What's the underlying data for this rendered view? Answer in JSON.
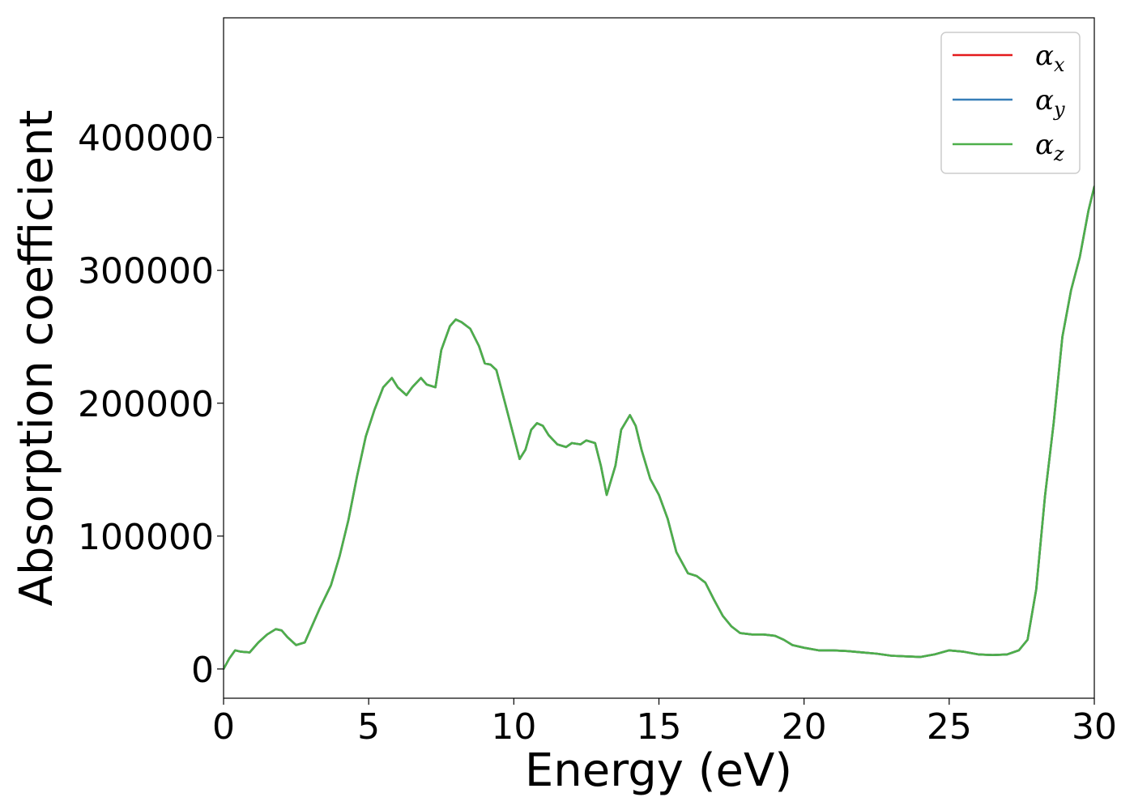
{
  "chart_data": {
    "type": "line",
    "title": "",
    "xlabel": "Energy (eV)",
    "ylabel": "Absorption coefficient",
    "xlim": [
      0,
      30
    ],
    "ylim": [
      -22000,
      490000
    ],
    "xticks": [
      0,
      5,
      10,
      15,
      20,
      25,
      30
    ],
    "yticks": [
      0,
      100000,
      200000,
      300000,
      400000
    ],
    "grid": false,
    "legend_position": "top-right",
    "legend": [
      {
        "symbol": "α",
        "subscript": "x",
        "color": "#e41a1c"
      },
      {
        "symbol": "α",
        "subscript": "y",
        "color": "#377eb8"
      },
      {
        "symbol": "α",
        "subscript": "z",
        "color": "#4daf4a"
      }
    ],
    "x": [
      0,
      0.2,
      0.4,
      0.6,
      0.9,
      1.2,
      1.5,
      1.8,
      2.0,
      2.2,
      2.5,
      2.8,
      3.0,
      3.3,
      3.7,
      4.0,
      4.3,
      4.6,
      4.9,
      5.2,
      5.5,
      5.8,
      6.0,
      6.3,
      6.5,
      6.8,
      7.0,
      7.3,
      7.5,
      7.8,
      8.0,
      8.2,
      8.5,
      8.8,
      9.0,
      9.2,
      9.4,
      9.7,
      10.0,
      10.2,
      10.4,
      10.6,
      10.8,
      11.0,
      11.2,
      11.5,
      11.8,
      12.0,
      12.3,
      12.5,
      12.8,
      13.0,
      13.2,
      13.5,
      13.7,
      14.0,
      14.2,
      14.4,
      14.7,
      15.0,
      15.3,
      15.6,
      16.0,
      16.3,
      16.6,
      16.9,
      17.2,
      17.5,
      17.8,
      18.2,
      18.6,
      19.0,
      19.3,
      19.6,
      20.0,
      20.5,
      21.0,
      21.5,
      22.0,
      22.5,
      23.0,
      23.5,
      24.0,
      24.5,
      25.0,
      25.5,
      26.0,
      26.5,
      27.0,
      27.4,
      27.7,
      28.0,
      28.3,
      28.6,
      28.9,
      29.2,
      29.5,
      29.8,
      30.0
    ],
    "series": [
      {
        "name": "α_x",
        "color": "#e41a1c",
        "values": [
          0,
          8000,
          14000,
          13000,
          12500,
          20000,
          26000,
          30000,
          29000,
          24000,
          18000,
          20000,
          30000,
          45000,
          63000,
          85000,
          112000,
          145000,
          175000,
          195000,
          212000,
          219000,
          212000,
          206000,
          212000,
          219000,
          214000,
          212000,
          240000,
          258000,
          263000,
          261000,
          256000,
          243000,
          230000,
          229000,
          225000,
          200000,
          175000,
          158000,
          165000,
          180000,
          185000,
          183000,
          176000,
          169000,
          167000,
          170000,
          169000,
          172000,
          170000,
          153000,
          131000,
          153000,
          180000,
          191000,
          183000,
          165000,
          143000,
          131000,
          113000,
          88000,
          72000,
          70000,
          65000,
          52000,
          40000,
          32000,
          27000,
          26000,
          26000,
          25000,
          22000,
          18000,
          16000,
          14000,
          14000,
          13500,
          12500,
          11500,
          10000,
          9500,
          9000,
          11000,
          14000,
          13000,
          11000,
          10500,
          11000,
          14000,
          22000,
          60000,
          130000,
          185000,
          250000,
          285000,
          310000,
          345000,
          363000
        ]
      },
      {
        "name": "α_y",
        "color": "#377eb8",
        "values": [
          0,
          8000,
          14000,
          13000,
          12500,
          20000,
          26000,
          30000,
          29000,
          24000,
          18000,
          20000,
          30000,
          45000,
          63000,
          85000,
          112000,
          145000,
          175000,
          195000,
          212000,
          219000,
          212000,
          206000,
          212000,
          219000,
          214000,
          212000,
          240000,
          258000,
          263000,
          261000,
          256000,
          243000,
          230000,
          229000,
          225000,
          200000,
          175000,
          158000,
          165000,
          180000,
          185000,
          183000,
          176000,
          169000,
          167000,
          170000,
          169000,
          172000,
          170000,
          153000,
          131000,
          153000,
          180000,
          191000,
          183000,
          165000,
          143000,
          131000,
          113000,
          88000,
          72000,
          70000,
          65000,
          52000,
          40000,
          32000,
          27000,
          26000,
          26000,
          25000,
          22000,
          18000,
          16000,
          14000,
          14000,
          13500,
          12500,
          11500,
          10000,
          9500,
          9000,
          11000,
          14000,
          13000,
          11000,
          10500,
          11000,
          14000,
          22000,
          60000,
          130000,
          185000,
          250000,
          285000,
          310000,
          345000,
          363000
        ]
      },
      {
        "name": "α_z",
        "color": "#4daf4a",
        "values": [
          0,
          8000,
          14000,
          13000,
          12500,
          20000,
          26000,
          30000,
          29000,
          24000,
          18000,
          20000,
          30000,
          45000,
          63000,
          85000,
          112000,
          145000,
          175000,
          195000,
          212000,
          219000,
          212000,
          206000,
          212000,
          219000,
          214000,
          212000,
          240000,
          258000,
          263000,
          261000,
          256000,
          243000,
          230000,
          229000,
          225000,
          200000,
          175000,
          158000,
          165000,
          180000,
          185000,
          183000,
          176000,
          169000,
          167000,
          170000,
          169000,
          172000,
          170000,
          153000,
          131000,
          153000,
          180000,
          191000,
          183000,
          165000,
          143000,
          131000,
          113000,
          88000,
          72000,
          70000,
          65000,
          52000,
          40000,
          32000,
          27000,
          26000,
          26000,
          25000,
          22000,
          18000,
          16000,
          14000,
          14000,
          13500,
          12500,
          11500,
          10000,
          9500,
          9000,
          11000,
          14000,
          13000,
          11000,
          10500,
          11000,
          14000,
          22000,
          60000,
          130000,
          185000,
          250000,
          285000,
          310000,
          345000,
          363000
        ]
      }
    ]
  }
}
